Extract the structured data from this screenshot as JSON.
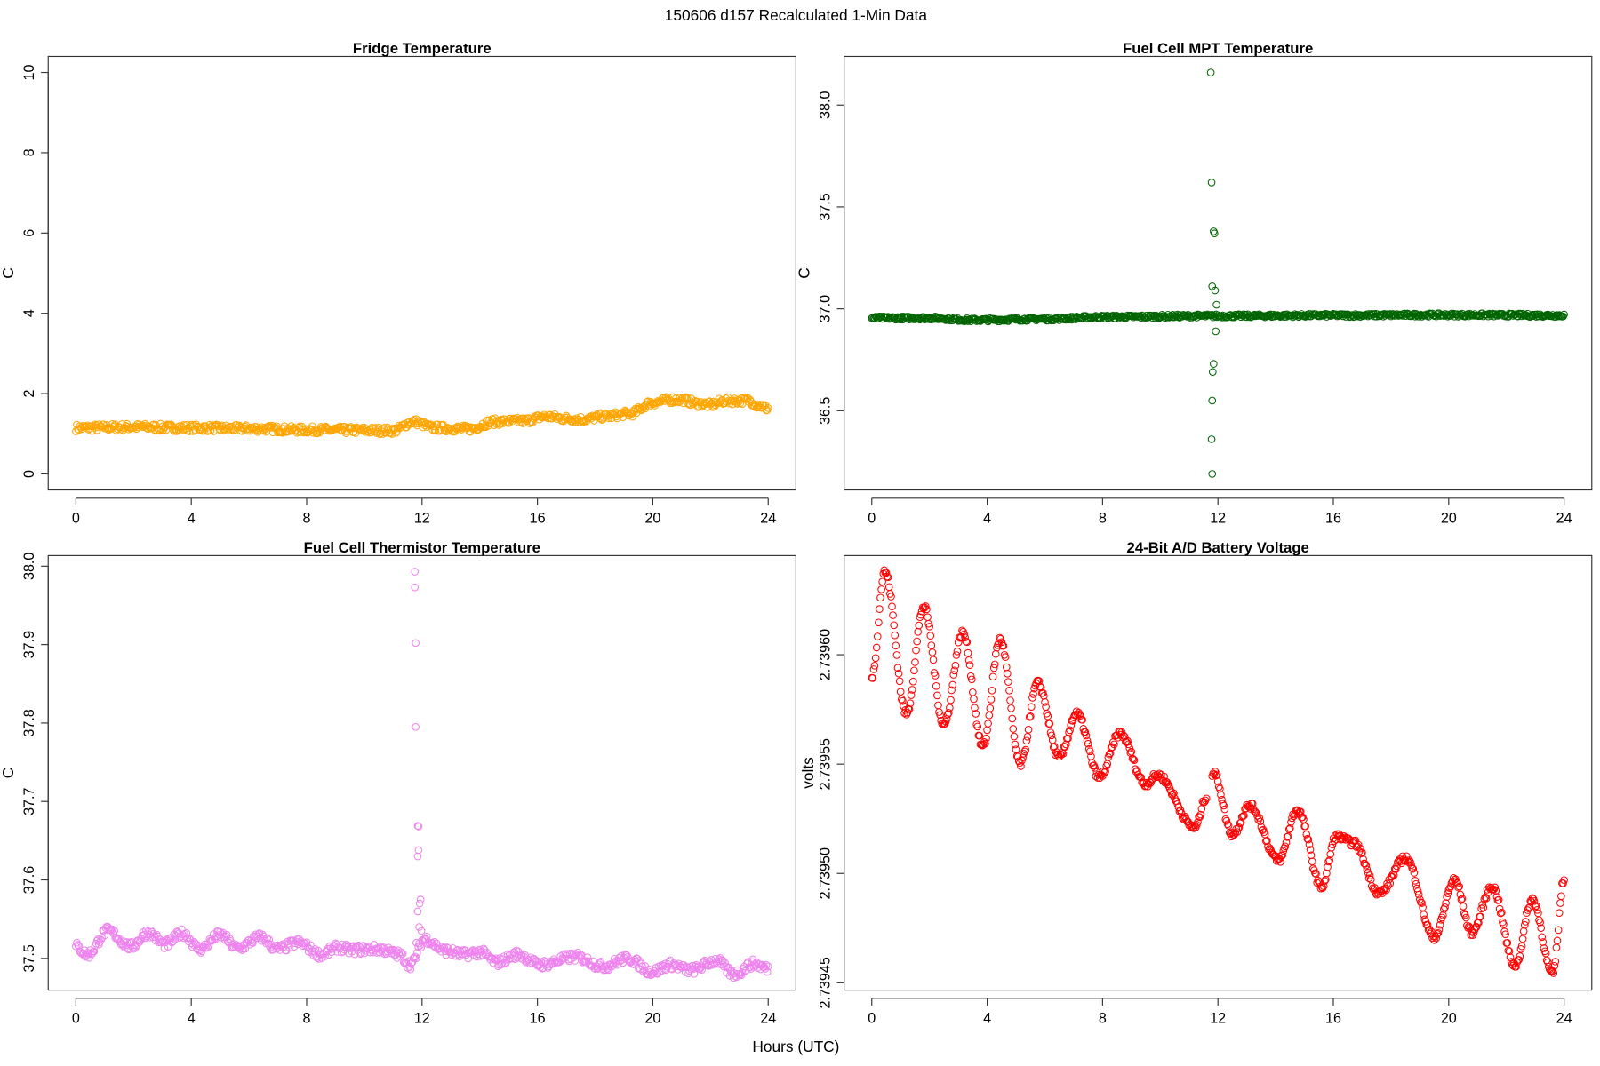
{
  "figure_title": "150606   d157   Recalculated 1-Min Data",
  "shared_xlabel": "Hours (UTC)",
  "chart_data": [
    {
      "type": "scatter",
      "title": "Fridge Temperature",
      "ylabel": "C",
      "xlabel": "",
      "color": "#FFA500",
      "xlim": [
        0,
        24
      ],
      "ylim": [
        0,
        10
      ],
      "xticks": [
        0,
        4,
        8,
        12,
        16,
        20,
        24
      ],
      "yticks": [
        0,
        2,
        4,
        6,
        8,
        10
      ],
      "ytick_labels": [
        "0",
        "2",
        "4",
        "6",
        "8",
        "10"
      ],
      "points": [
        [
          0,
          1.15
        ],
        [
          2,
          1.17
        ],
        [
          4,
          1.15
        ],
        [
          6,
          1.13
        ],
        [
          8,
          1.1
        ],
        [
          11,
          1.08
        ],
        [
          11.7,
          1.3
        ],
        [
          12.4,
          1.15
        ],
        [
          13.6,
          1.12
        ],
        [
          14.5,
          1.3
        ],
        [
          15.5,
          1.32
        ],
        [
          16.3,
          1.43
        ],
        [
          17,
          1.38
        ],
        [
          17.6,
          1.36
        ],
        [
          18.3,
          1.43
        ],
        [
          19.2,
          1.5
        ],
        [
          20,
          1.78
        ],
        [
          20.7,
          1.85
        ],
        [
          21,
          1.85
        ],
        [
          21.6,
          1.75
        ],
        [
          22,
          1.72
        ],
        [
          22.5,
          1.82
        ],
        [
          23.3,
          1.83
        ],
        [
          23.7,
          1.7
        ],
        [
          24,
          1.63
        ]
      ],
      "outliers": []
    },
    {
      "type": "scatter",
      "title": "Fuel Cell MPT Temperature",
      "ylabel": "C",
      "xlabel": "",
      "color": "#006400",
      "xlim": [
        0,
        24
      ],
      "ylim": [
        36.19,
        38.16
      ],
      "xticks": [
        0,
        4,
        8,
        12,
        16,
        20,
        24
      ],
      "yticks": [
        36.5,
        37.0,
        37.5,
        38.0
      ],
      "ytick_labels": [
        "36.5",
        "37.0",
        "37.5",
        "38.0"
      ],
      "points": [
        [
          0,
          36.955
        ],
        [
          2,
          36.955
        ],
        [
          3.5,
          36.945
        ],
        [
          6,
          36.95
        ],
        [
          8,
          36.96
        ],
        [
          11.7,
          36.965
        ],
        [
          12.1,
          36.965
        ],
        [
          16,
          36.968
        ],
        [
          20,
          36.97
        ],
        [
          24,
          36.968
        ]
      ],
      "outliers": [
        [
          11.75,
          38.16
        ],
        [
          11.78,
          37.62
        ],
        [
          11.85,
          37.38
        ],
        [
          11.88,
          37.37
        ],
        [
          11.8,
          37.11
        ],
        [
          11.9,
          37.09
        ],
        [
          11.95,
          37.02
        ],
        [
          11.92,
          36.89
        ],
        [
          11.85,
          36.73
        ],
        [
          11.82,
          36.69
        ],
        [
          11.8,
          36.55
        ],
        [
          11.78,
          36.36
        ],
        [
          11.8,
          36.19
        ]
      ]
    },
    {
      "type": "scatter",
      "title": "Fuel Cell Thermistor Temperature",
      "ylabel": "C",
      "xlabel": "",
      "color": "#EE82EE",
      "xlim": [
        0,
        24
      ],
      "ylim": [
        37.48,
        37.993
      ],
      "xticks": [
        0,
        4,
        8,
        12,
        16,
        20,
        24
      ],
      "yticks": [
        37.5,
        37.6,
        37.7,
        37.8,
        37.9,
        38.0
      ],
      "ytick_labels": [
        "37.5",
        "37.6",
        "37.7",
        "37.8",
        "37.9",
        "38.0"
      ],
      "points": [
        [
          0,
          37.515
        ],
        [
          0.4,
          37.505
        ],
        [
          1.1,
          37.535
        ],
        [
          1.9,
          37.515
        ],
        [
          2.5,
          37.533
        ],
        [
          3.1,
          37.518
        ],
        [
          3.7,
          37.532
        ],
        [
          4.3,
          37.512
        ],
        [
          5,
          37.53
        ],
        [
          5.6,
          37.513
        ],
        [
          6.4,
          37.527
        ],
        [
          7,
          37.512
        ],
        [
          7.7,
          37.52
        ],
        [
          8.5,
          37.505
        ],
        [
          9.1,
          37.514
        ],
        [
          9.5,
          37.511
        ],
        [
          10.5,
          37.512
        ],
        [
          11.2,
          37.505
        ],
        [
          11.6,
          37.492
        ],
        [
          12.1,
          37.525
        ],
        [
          12.8,
          37.51
        ],
        [
          13.4,
          37.505
        ],
        [
          14,
          37.508
        ],
        [
          14.6,
          37.495
        ],
        [
          15.3,
          37.505
        ],
        [
          16.1,
          37.492
        ],
        [
          17.3,
          37.502
        ],
        [
          18.3,
          37.49
        ],
        [
          19.1,
          37.5
        ],
        [
          20,
          37.483
        ],
        [
          20.6,
          37.492
        ],
        [
          21.3,
          37.485
        ],
        [
          22.2,
          37.497
        ],
        [
          22.8,
          37.48
        ],
        [
          23.5,
          37.493
        ],
        [
          24,
          37.487
        ]
      ],
      "outliers": [
        [
          11.75,
          37.993
        ],
        [
          11.75,
          37.973
        ],
        [
          11.78,
          37.902
        ],
        [
          11.78,
          37.795
        ],
        [
          11.85,
          37.669
        ],
        [
          11.88,
          37.668
        ],
        [
          11.88,
          37.638
        ],
        [
          11.85,
          37.63
        ],
        [
          11.95,
          37.575
        ],
        [
          11.92,
          37.57
        ],
        [
          11.85,
          37.56
        ],
        [
          11.9,
          37.54
        ],
        [
          11.98,
          37.535
        ],
        [
          11.8,
          37.52
        ]
      ]
    },
    {
      "type": "scatter",
      "title": "24-Bit A/D Battery Voltage",
      "ylabel": "volts",
      "xlabel": "",
      "color": "#FF0000",
      "xlim": [
        0,
        24
      ],
      "ylim": [
        2.739454,
        2.739638
      ],
      "xticks": [
        0,
        4,
        8,
        12,
        16,
        20,
        24
      ],
      "yticks": [
        2.73945,
        2.7395,
        2.73955,
        2.7396
      ],
      "ytick_labels": [
        "2.73945",
        "2.73950",
        "2.73955",
        "2.73960"
      ],
      "points": [
        [
          0,
          2.73959
        ],
        [
          0.45,
          2.739638
        ],
        [
          1.2,
          2.739573
        ],
        [
          1.8,
          2.739622
        ],
        [
          2.5,
          2.739568
        ],
        [
          3.15,
          2.73961
        ],
        [
          3.85,
          2.739558
        ],
        [
          4.45,
          2.739607
        ],
        [
          5.15,
          2.73955
        ],
        [
          5.75,
          2.739587
        ],
        [
          6.5,
          2.739553
        ],
        [
          7.1,
          2.739573
        ],
        [
          7.9,
          2.739544
        ],
        [
          8.6,
          2.739564
        ],
        [
          9.5,
          2.739541
        ],
        [
          9.9,
          2.739545
        ],
        [
          11.2,
          2.739521
        ],
        [
          11.6,
          2.739535
        ],
        [
          11.85,
          2.739546
        ],
        [
          12.5,
          2.739518
        ],
        [
          13.1,
          2.739531
        ],
        [
          14.1,
          2.739506
        ],
        [
          14.75,
          2.739529
        ],
        [
          15.6,
          2.739494
        ],
        [
          16.1,
          2.739517
        ],
        [
          16.7,
          2.739514
        ],
        [
          17.6,
          2.739491
        ],
        [
          18.5,
          2.739507
        ],
        [
          19.5,
          2.739471
        ],
        [
          20.2,
          2.739497
        ],
        [
          20.8,
          2.739473
        ],
        [
          21.5,
          2.739494
        ],
        [
          22.3,
          2.739458
        ],
        [
          22.9,
          2.739488
        ],
        [
          23.6,
          2.739454
        ],
        [
          24,
          2.739497
        ]
      ],
      "outliers": []
    }
  ]
}
